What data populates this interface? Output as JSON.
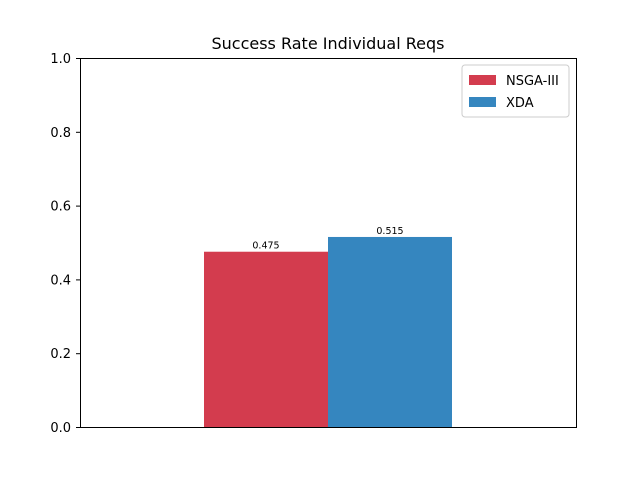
{
  "chart_data": {
    "type": "bar",
    "title": "Success Rate Individual Reqs",
    "xlabel": "",
    "ylabel": "",
    "ylim": [
      0,
      1.0
    ],
    "yticks": [
      0.0,
      0.2,
      0.4,
      0.6,
      0.8,
      1.0
    ],
    "ytick_labels": [
      "0.0",
      "0.2",
      "0.4",
      "0.6",
      "0.8",
      "1.0"
    ],
    "categories": [
      ""
    ],
    "series": [
      {
        "name": "NSGA-III",
        "color": "#d33c4e",
        "values": [
          0.475
        ],
        "label": "0.475"
      },
      {
        "name": "XDA",
        "color": "#3586bf",
        "values": [
          0.515
        ],
        "label": "0.515"
      }
    ],
    "legend_position": "top-right",
    "grid": false
  }
}
